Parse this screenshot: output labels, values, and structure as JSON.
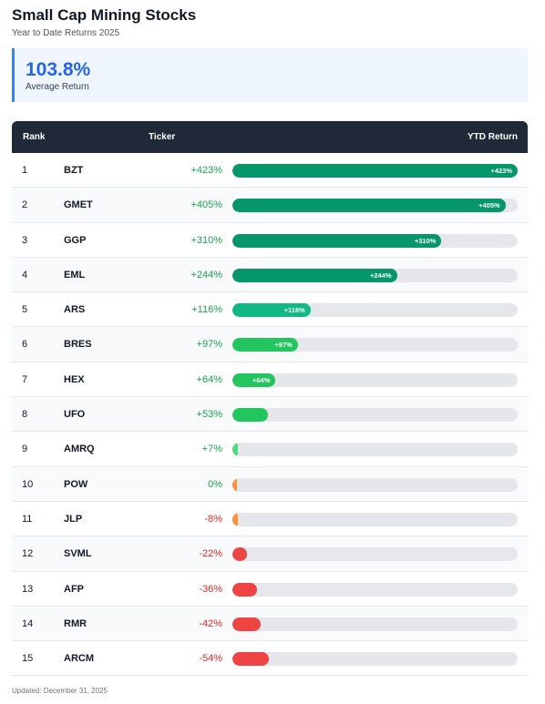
{
  "header": {
    "title": "Small Cap Mining Stocks",
    "subtitle": "Year to Date Returns 2025"
  },
  "summary": {
    "value": "103.8%",
    "label": "Average Return"
  },
  "table": {
    "headers": {
      "rank": "Rank",
      "ticker": "Ticker",
      "ytd": "YTD Return"
    }
  },
  "colors": {
    "high": "#059669",
    "mid": "#10b981",
    "low_pos": "#22c55e",
    "tiny_pos": "#4ade80",
    "zero": "#fb923c",
    "neg": "#ef4444",
    "pos_text": "#16a34a",
    "neg_text": "#dc2626"
  },
  "chart_data": {
    "type": "bar",
    "xlabel": "",
    "ylabel": "YTD Return",
    "ylim": [
      0,
      423
    ],
    "rows": [
      {
        "rank": "1",
        "ticker": "BZT",
        "value": 423,
        "label": "+423%"
      },
      {
        "rank": "2",
        "ticker": "GMET",
        "value": 405,
        "label": "+405%"
      },
      {
        "rank": "3",
        "ticker": "GGP",
        "value": 310,
        "label": "+310%"
      },
      {
        "rank": "4",
        "ticker": "EML",
        "value": 244,
        "label": "+244%"
      },
      {
        "rank": "5",
        "ticker": "ARS",
        "value": 116,
        "label": "+116%"
      },
      {
        "rank": "6",
        "ticker": "BRES",
        "value": 97,
        "label": "+97%"
      },
      {
        "rank": "7",
        "ticker": "HEX",
        "value": 64,
        "label": "+64%"
      },
      {
        "rank": "8",
        "ticker": "UFO",
        "value": 53,
        "label": "+53%"
      },
      {
        "rank": "9",
        "ticker": "AMRQ",
        "value": 7,
        "label": "+7%"
      },
      {
        "rank": "10",
        "ticker": "POW",
        "value": 0,
        "label": "0%"
      },
      {
        "rank": "11",
        "ticker": "JLP",
        "value": -8,
        "label": "-8%"
      },
      {
        "rank": "12",
        "ticker": "SVML",
        "value": -22,
        "label": "-22%"
      },
      {
        "rank": "13",
        "ticker": "AFP",
        "value": -36,
        "label": "-36%"
      },
      {
        "rank": "14",
        "ticker": "RMR",
        "value": -42,
        "label": "-42%"
      },
      {
        "rank": "15",
        "ticker": "ARCM",
        "value": -54,
        "label": "-54%"
      }
    ]
  },
  "footer": {
    "updated": "Updated: December 31, 2025"
  }
}
